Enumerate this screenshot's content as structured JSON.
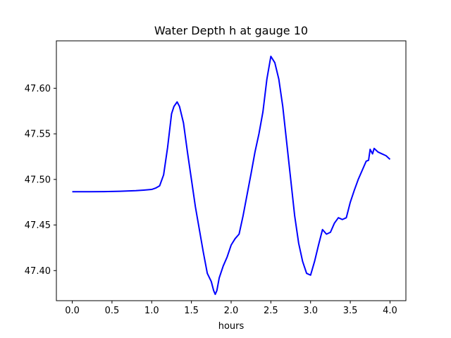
{
  "chart_data": {
    "type": "line",
    "title": "Water Depth h at gauge 10",
    "xlabel": "hours",
    "ylabel": "",
    "xlim": [
      -0.2,
      4.2
    ],
    "ylim": [
      47.367,
      47.652
    ],
    "xticks": [
      0.0,
      0.5,
      1.0,
      1.5,
      2.0,
      2.5,
      3.0,
      3.5,
      4.0
    ],
    "xtick_labels": [
      "0.0",
      "0.5",
      "1.0",
      "1.5",
      "2.0",
      "2.5",
      "3.0",
      "3.5",
      "4.0"
    ],
    "yticks": [
      47.4,
      47.45,
      47.5,
      47.55,
      47.6
    ],
    "ytick_labels": [
      "47.40",
      "47.45",
      "47.50",
      "47.55",
      "47.60"
    ],
    "grid": false,
    "series": [
      {
        "color": "#0000ff",
        "x": [
          0.0,
          0.2,
          0.4,
          0.6,
          0.8,
          0.9,
          1.0,
          1.05,
          1.1,
          1.15,
          1.2,
          1.25,
          1.28,
          1.32,
          1.35,
          1.4,
          1.45,
          1.5,
          1.55,
          1.6,
          1.65,
          1.7,
          1.75,
          1.78,
          1.8,
          1.82,
          1.85,
          1.9,
          1.95,
          2.0,
          2.05,
          2.1,
          2.15,
          2.2,
          2.25,
          2.3,
          2.35,
          2.4,
          2.45,
          2.5,
          2.55,
          2.6,
          2.65,
          2.7,
          2.75,
          2.8,
          2.85,
          2.9,
          2.95,
          3.0,
          3.05,
          3.1,
          3.15,
          3.2,
          3.25,
          3.3,
          3.35,
          3.4,
          3.45,
          3.5,
          3.55,
          3.6,
          3.65,
          3.7,
          3.73,
          3.75,
          3.78,
          3.8,
          3.85,
          3.9,
          3.95,
          4.0
        ],
        "y": [
          47.4865,
          47.4865,
          47.4866,
          47.487,
          47.4877,
          47.4883,
          47.489,
          47.4905,
          47.493,
          47.505,
          47.535,
          47.572,
          47.58,
          47.585,
          47.58,
          47.562,
          47.53,
          47.5,
          47.47,
          47.445,
          47.42,
          47.397,
          47.388,
          47.378,
          47.374,
          47.378,
          47.392,
          47.405,
          47.415,
          47.428,
          47.435,
          47.44,
          47.46,
          47.483,
          47.506,
          47.53,
          47.55,
          47.574,
          47.61,
          47.635,
          47.628,
          47.61,
          47.58,
          47.54,
          47.5,
          47.46,
          47.43,
          47.41,
          47.397,
          47.395,
          47.41,
          47.428,
          47.445,
          47.44,
          47.442,
          47.452,
          47.458,
          47.456,
          47.458,
          47.475,
          47.488,
          47.5,
          47.51,
          47.52,
          47.521,
          47.533,
          47.528,
          47.534,
          47.53,
          47.528,
          47.526,
          47.522
        ]
      }
    ]
  }
}
